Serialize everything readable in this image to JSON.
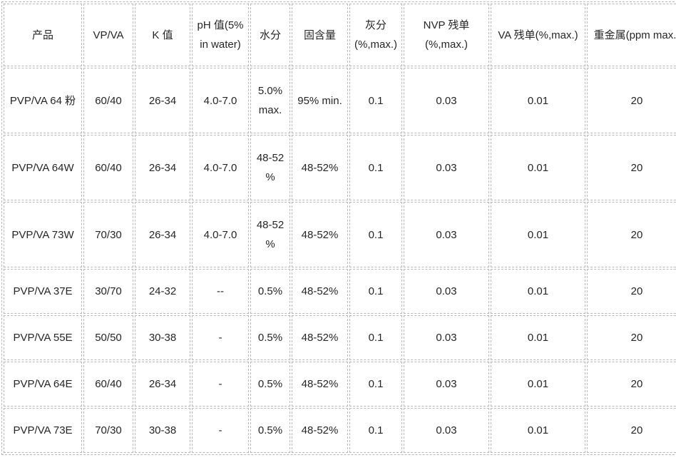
{
  "table": {
    "columns": [
      "产品",
      "VP/VA",
      "K 值",
      "pH 值(5% in water)",
      "水分",
      "固含量",
      "灰分 (%,max.)",
      "NVP 残单 (%,max.)",
      "VA 残单(%,max.)",
      "重金属(ppm max.)"
    ],
    "rows": [
      [
        "PVP/VA 64 粉",
        "60/40",
        "26-34",
        "4.0-7.0",
        "5.0% max.",
        "95% min.",
        "0.1",
        "0.03",
        "0.01",
        "20"
      ],
      [
        "PVP/VA 64W",
        "60/40",
        "26-34",
        "4.0-7.0",
        "48-52 %",
        "48-52%",
        "0.1",
        "0.03",
        "0.01",
        "20"
      ],
      [
        "PVP/VA 73W",
        "70/30",
        "26-34",
        "4.0-7.0",
        "48-52 %",
        "48-52%",
        "0.1",
        "0.03",
        "0.01",
        "20"
      ],
      [
        "PVP/VA 37E",
        "30/70",
        "24-32",
        "--",
        "0.5%",
        "48-52%",
        "0.1",
        "0.03",
        "0.01",
        "20"
      ],
      [
        "PVP/VA 55E",
        "50/50",
        "30-38",
        "-",
        "0.5%",
        "48-52%",
        "0.1",
        "0.03",
        "0.01",
        "20"
      ],
      [
        "PVP/VA 64E",
        "60/40",
        "26-34",
        "-",
        "0.5%",
        "48-52%",
        "0.1",
        "0.03",
        "0.01",
        "20"
      ],
      [
        "PVP/VA 73E",
        "70/30",
        "30-38",
        "-",
        "0.5%",
        "48-52%",
        "0.1",
        "0.03",
        "0.01",
        "20"
      ]
    ]
  },
  "colors": {
    "border": "#b9b9b9",
    "text": "#262626",
    "background": "#ffffff"
  }
}
